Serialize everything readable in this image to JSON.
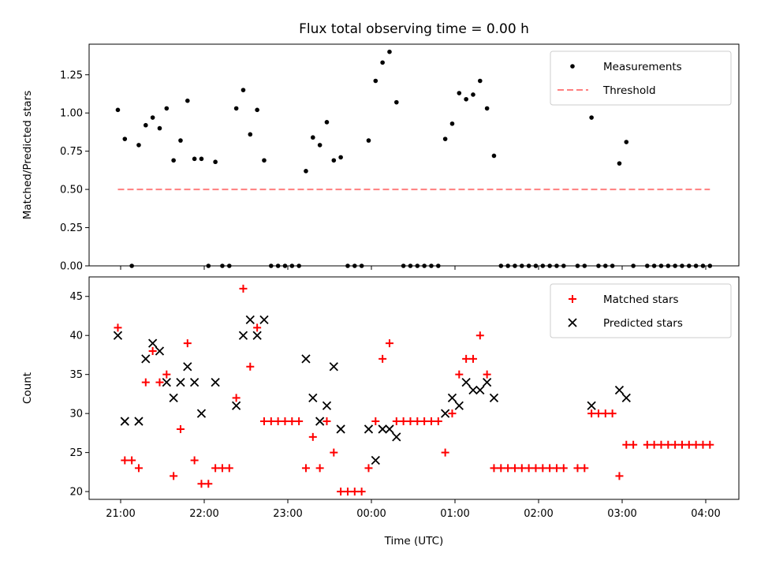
{
  "title": "Flux total observing time = 0.00 h",
  "colors": {
    "measurements": "#000000",
    "threshold": "#ff7f7f",
    "matched": "#ff0000",
    "predicted": "#000000"
  },
  "chart_data": [
    {
      "type": "scatter",
      "ylabel": "Matched/Predicted stars",
      "xlabel": "",
      "ylim": [
        0,
        1.45
      ],
      "yticks": [
        0.0,
        0.25,
        0.5,
        0.75,
        1.0,
        1.25
      ],
      "ytick_labels": [
        "0.00",
        "0.25",
        "0.50",
        "0.75",
        "1.00",
        "1.25"
      ],
      "legend_position": "top-right",
      "series": [
        {
          "name": "Measurements",
          "marker": "dot",
          "points": [
            [
              "20:58",
              1.02
            ],
            [
              "21:03",
              0.83
            ],
            [
              "21:08",
              0.0
            ],
            [
              "21:13",
              0.79
            ],
            [
              "21:18",
              0.92
            ],
            [
              "21:23",
              0.97
            ],
            [
              "21:28",
              0.9
            ],
            [
              "21:33",
              1.03
            ],
            [
              "21:38",
              0.69
            ],
            [
              "21:43",
              0.82
            ],
            [
              "21:48",
              1.08
            ],
            [
              "21:53",
              0.7
            ],
            [
              "21:58",
              0.7
            ],
            [
              "22:03",
              0.0
            ],
            [
              "22:08",
              0.68
            ],
            [
              "22:13",
              0.0
            ],
            [
              "22:18",
              0.0
            ],
            [
              "22:23",
              1.03
            ],
            [
              "22:28",
              1.15
            ],
            [
              "22:33",
              0.86
            ],
            [
              "22:38",
              1.02
            ],
            [
              "22:43",
              0.69
            ],
            [
              "22:48",
              0.0
            ],
            [
              "22:53",
              0.0
            ],
            [
              "22:58",
              0.0
            ],
            [
              "23:03",
              0.0
            ],
            [
              "23:08",
              0.0
            ],
            [
              "23:13",
              0.62
            ],
            [
              "23:18",
              0.84
            ],
            [
              "23:23",
              0.79
            ],
            [
              "23:28",
              0.94
            ],
            [
              "23:33",
              0.69
            ],
            [
              "23:38",
              0.71
            ],
            [
              "23:43",
              0.0
            ],
            [
              "23:48",
              0.0
            ],
            [
              "23:53",
              0.0
            ],
            [
              "23:58",
              0.82
            ],
            [
              "00:03",
              1.21
            ],
            [
              "00:08",
              1.33
            ],
            [
              "00:13",
              1.4
            ],
            [
              "00:18",
              1.07
            ],
            [
              "00:23",
              0.0
            ],
            [
              "00:28",
              0.0
            ],
            [
              "00:33",
              0.0
            ],
            [
              "00:38",
              0.0
            ],
            [
              "00:43",
              0.0
            ],
            [
              "00:48",
              0.0
            ],
            [
              "00:53",
              0.83
            ],
            [
              "00:58",
              0.93
            ],
            [
              "01:03",
              1.13
            ],
            [
              "01:08",
              1.09
            ],
            [
              "01:13",
              1.12
            ],
            [
              "01:18",
              1.21
            ],
            [
              "01:23",
              1.03
            ],
            [
              "01:28",
              0.72
            ],
            [
              "01:33",
              0.0
            ],
            [
              "01:38",
              0.0
            ],
            [
              "01:43",
              0.0
            ],
            [
              "01:48",
              0.0
            ],
            [
              "01:53",
              0.0
            ],
            [
              "01:58",
              0.0
            ],
            [
              "02:03",
              0.0
            ],
            [
              "02:08",
              0.0
            ],
            [
              "02:13",
              0.0
            ],
            [
              "02:18",
              0.0
            ],
            [
              "02:28",
              0.0
            ],
            [
              "02:33",
              0.0
            ],
            [
              "02:38",
              0.97
            ],
            [
              "02:43",
              0.0
            ],
            [
              "02:48",
              0.0
            ],
            [
              "02:53",
              0.0
            ],
            [
              "02:58",
              0.67
            ],
            [
              "03:03",
              0.81
            ],
            [
              "03:08",
              0.0
            ],
            [
              "03:18",
              0.0
            ],
            [
              "03:23",
              0.0
            ],
            [
              "03:28",
              0.0
            ],
            [
              "03:33",
              0.0
            ],
            [
              "03:38",
              0.0
            ],
            [
              "03:43",
              0.0
            ],
            [
              "03:48",
              0.0
            ],
            [
              "03:53",
              0.0
            ],
            [
              "03:58",
              0.0
            ],
            [
              "04:03",
              0.0
            ]
          ]
        },
        {
          "name": "Threshold",
          "marker": "dashed-line",
          "points": [
            [
              "20:58",
              0.5
            ],
            [
              "04:03",
              0.5
            ]
          ]
        }
      ]
    },
    {
      "type": "scatter",
      "ylabel": "Count",
      "xlabel": "Time (UTC)",
      "ylim": [
        19,
        47.5
      ],
      "yticks": [
        20,
        25,
        30,
        35,
        40,
        45
      ],
      "ytick_labels": [
        "20",
        "25",
        "30",
        "35",
        "40",
        "45"
      ],
      "xticks": [
        "21:00",
        "22:00",
        "23:00",
        "00:00",
        "01:00",
        "02:00",
        "03:00",
        "04:00"
      ],
      "legend_position": "top-right",
      "series": [
        {
          "name": "Matched stars",
          "marker": "plus",
          "points": [
            [
              "20:58",
              41
            ],
            [
              "21:03",
              24
            ],
            [
              "21:08",
              24
            ],
            [
              "21:13",
              23
            ],
            [
              "21:18",
              34
            ],
            [
              "21:23",
              38
            ],
            [
              "21:28",
              34
            ],
            [
              "21:33",
              35
            ],
            [
              "21:38",
              22
            ],
            [
              "21:43",
              28
            ],
            [
              "21:48",
              39
            ],
            [
              "21:53",
              24
            ],
            [
              "21:58",
              21
            ],
            [
              "22:03",
              21
            ],
            [
              "22:08",
              23
            ],
            [
              "22:13",
              23
            ],
            [
              "22:18",
              23
            ],
            [
              "22:23",
              32
            ],
            [
              "22:28",
              46
            ],
            [
              "22:33",
              36
            ],
            [
              "22:38",
              41
            ],
            [
              "22:43",
              29
            ],
            [
              "22:48",
              29
            ],
            [
              "22:53",
              29
            ],
            [
              "22:58",
              29
            ],
            [
              "23:03",
              29
            ],
            [
              "23:08",
              29
            ],
            [
              "23:13",
              23
            ],
            [
              "23:18",
              27
            ],
            [
              "23:23",
              23
            ],
            [
              "23:28",
              29
            ],
            [
              "23:33",
              25
            ],
            [
              "23:38",
              20
            ],
            [
              "23:43",
              20
            ],
            [
              "23:48",
              20
            ],
            [
              "23:53",
              20
            ],
            [
              "23:58",
              23
            ],
            [
              "00:03",
              29
            ],
            [
              "00:08",
              37
            ],
            [
              "00:13",
              39
            ],
            [
              "00:18",
              29
            ],
            [
              "00:23",
              29
            ],
            [
              "00:28",
              29
            ],
            [
              "00:33",
              29
            ],
            [
              "00:38",
              29
            ],
            [
              "00:43",
              29
            ],
            [
              "00:48",
              29
            ],
            [
              "00:53",
              25
            ],
            [
              "00:58",
              30
            ],
            [
              "01:03",
              35
            ],
            [
              "01:08",
              37
            ],
            [
              "01:13",
              37
            ],
            [
              "01:18",
              40
            ],
            [
              "01:23",
              35
            ],
            [
              "01:28",
              23
            ],
            [
              "01:33",
              23
            ],
            [
              "01:38",
              23
            ],
            [
              "01:43",
              23
            ],
            [
              "01:48",
              23
            ],
            [
              "01:53",
              23
            ],
            [
              "01:58",
              23
            ],
            [
              "02:03",
              23
            ],
            [
              "02:08",
              23
            ],
            [
              "02:13",
              23
            ],
            [
              "02:18",
              23
            ],
            [
              "02:28",
              23
            ],
            [
              "02:33",
              23
            ],
            [
              "02:38",
              30
            ],
            [
              "02:43",
              30
            ],
            [
              "02:48",
              30
            ],
            [
              "02:53",
              30
            ],
            [
              "02:58",
              22
            ],
            [
              "03:03",
              26
            ],
            [
              "03:08",
              26
            ],
            [
              "03:18",
              26
            ],
            [
              "03:23",
              26
            ],
            [
              "03:28",
              26
            ],
            [
              "03:33",
              26
            ],
            [
              "03:38",
              26
            ],
            [
              "03:43",
              26
            ],
            [
              "03:48",
              26
            ],
            [
              "03:53",
              26
            ],
            [
              "03:58",
              26
            ],
            [
              "04:03",
              26
            ]
          ]
        },
        {
          "name": "Predicted stars",
          "marker": "cross",
          "points": [
            [
              "20:58",
              40
            ],
            [
              "21:03",
              29
            ],
            [
              "21:13",
              29
            ],
            [
              "21:18",
              37
            ],
            [
              "21:23",
              39
            ],
            [
              "21:28",
              38
            ],
            [
              "21:33",
              34
            ],
            [
              "21:38",
              32
            ],
            [
              "21:43",
              34
            ],
            [
              "21:48",
              36
            ],
            [
              "21:53",
              34
            ],
            [
              "21:58",
              30
            ],
            [
              "22:08",
              34
            ],
            [
              "22:23",
              31
            ],
            [
              "22:28",
              40
            ],
            [
              "22:33",
              42
            ],
            [
              "22:38",
              40
            ],
            [
              "22:43",
              42
            ],
            [
              "23:13",
              37
            ],
            [
              "23:18",
              32
            ],
            [
              "23:23",
              29
            ],
            [
              "23:28",
              31
            ],
            [
              "23:33",
              36
            ],
            [
              "23:38",
              28
            ],
            [
              "23:58",
              28
            ],
            [
              "00:03",
              24
            ],
            [
              "00:08",
              28
            ],
            [
              "00:13",
              28
            ],
            [
              "00:18",
              27
            ],
            [
              "00:53",
              30
            ],
            [
              "00:58",
              32
            ],
            [
              "01:03",
              31
            ],
            [
              "01:08",
              34
            ],
            [
              "01:13",
              33
            ],
            [
              "01:18",
              33
            ],
            [
              "01:23",
              34
            ],
            [
              "01:28",
              32
            ],
            [
              "02:38",
              31
            ],
            [
              "02:58",
              33
            ],
            [
              "03:03",
              32
            ]
          ]
        }
      ]
    }
  ]
}
